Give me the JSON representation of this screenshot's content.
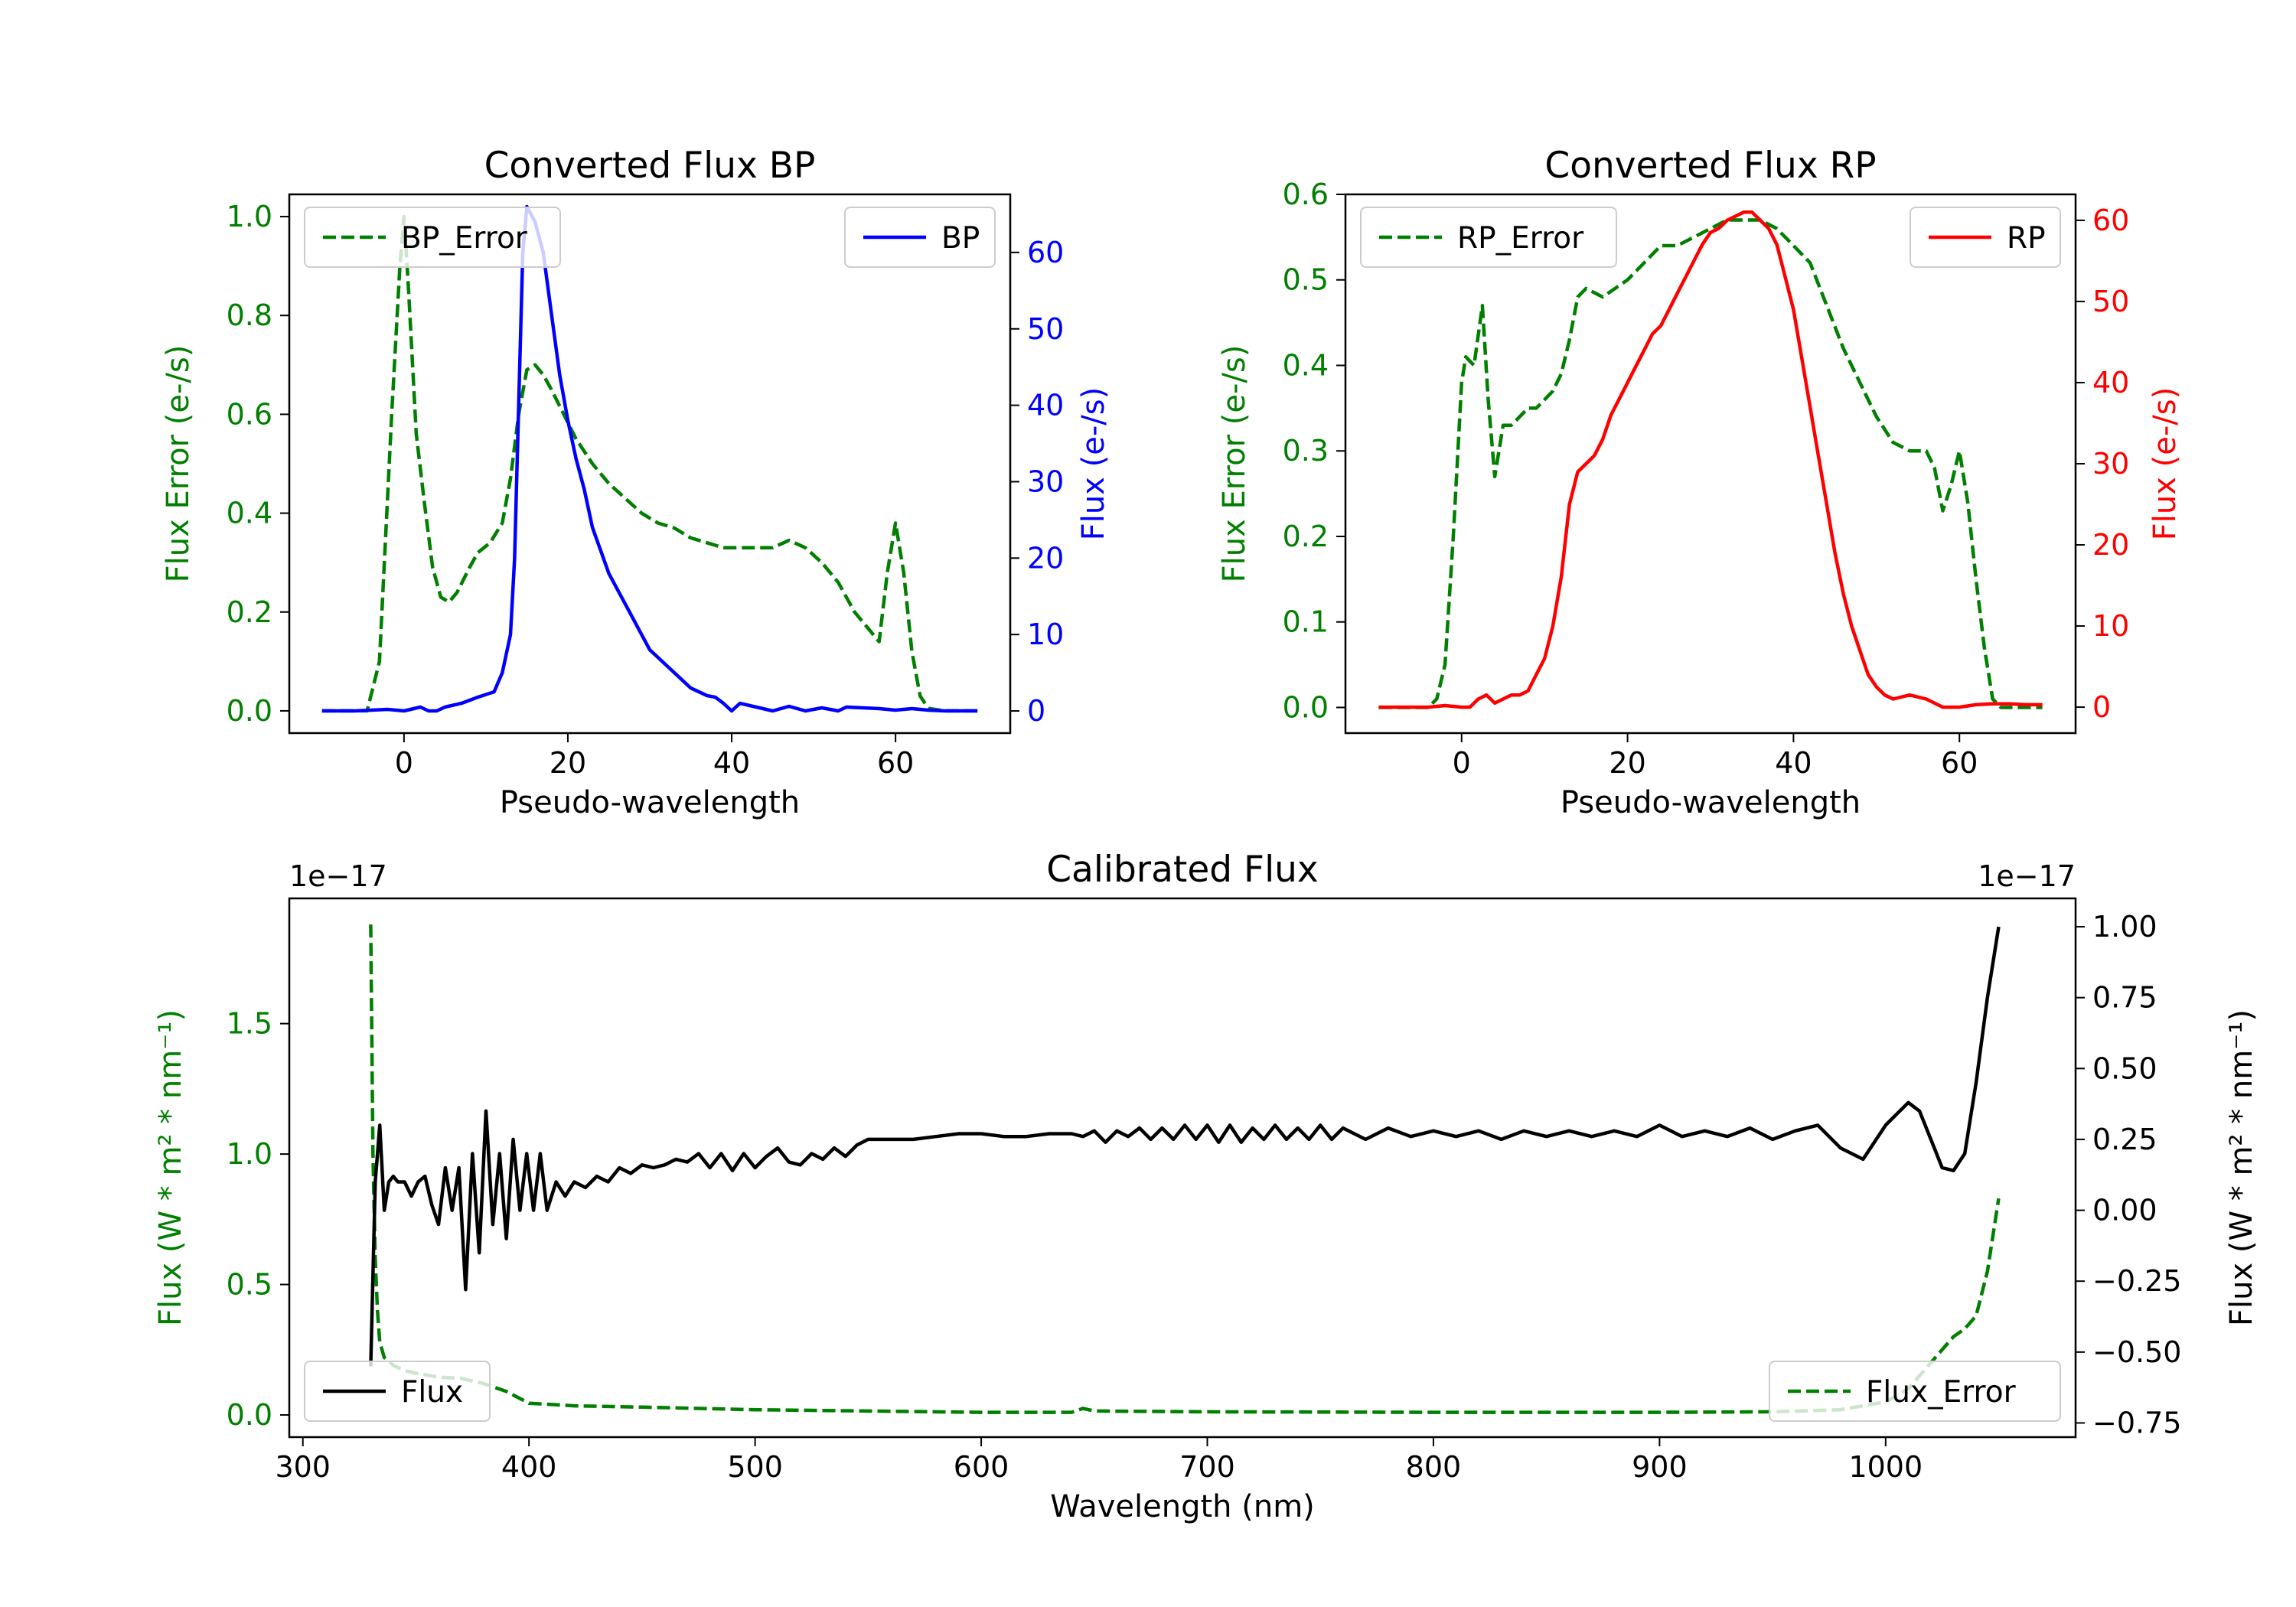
{
  "colors": {
    "green": "#007f00",
    "blue": "#0000ff",
    "red": "#ff0000",
    "black": "#000000"
  },
  "chart_data": [
    {
      "id": "bp",
      "type": "line",
      "title": "Converted Flux BP",
      "xlabel": "Pseudo-wavelength",
      "ylabel_left": "Flux Error (e-/s)",
      "ylabel_right": "Flux (e-/s)",
      "xlim": [
        -14,
        74
      ],
      "ylim_left": [
        -0.045,
        1.045
      ],
      "ylim_right": [
        -2.9,
        67.6
      ],
      "x_ticks": [
        0,
        20,
        40,
        60
      ],
      "x_tick_labels": [
        "0",
        "20",
        "40",
        "60"
      ],
      "y_left_ticks": [
        0,
        0.2,
        0.4,
        0.6,
        0.8,
        1.0
      ],
      "y_left_tick_labels": [
        "0.0",
        "0.2",
        "0.4",
        "0.6",
        "0.8",
        "1.0"
      ],
      "y_right_ticks": [
        0,
        10,
        20,
        30,
        40,
        50,
        60
      ],
      "y_right_tick_labels": [
        "0",
        "10",
        "20",
        "30",
        "40",
        "50",
        "60"
      ],
      "left_offset_label": "",
      "right_offset_label": "",
      "series": [
        {
          "name": "BP_Error",
          "axis": "left",
          "color": "#007f00",
          "dashed": true,
          "legend": "left",
          "x": [
            -10,
            -4.5,
            -3,
            -1.5,
            -0.5,
            0,
            0.5,
            1.5,
            2.5,
            3.5,
            4.5,
            5.5,
            6.5,
            8,
            9,
            10.5,
            12,
            13,
            14,
            15,
            16,
            17,
            18,
            19.5,
            21,
            23,
            25,
            27,
            29,
            31,
            33,
            35,
            37,
            39,
            41,
            43,
            45,
            47,
            49,
            51,
            53,
            55,
            57,
            58,
            59,
            60,
            61,
            62,
            63,
            64,
            66,
            68,
            70
          ],
          "values": [
            0.0,
            0.0,
            0.1,
            0.6,
            0.9,
            1.0,
            0.87,
            0.56,
            0.42,
            0.29,
            0.23,
            0.22,
            0.24,
            0.29,
            0.32,
            0.34,
            0.38,
            0.47,
            0.6,
            0.69,
            0.7,
            0.68,
            0.65,
            0.6,
            0.55,
            0.5,
            0.46,
            0.43,
            0.4,
            0.38,
            0.37,
            0.35,
            0.34,
            0.33,
            0.33,
            0.33,
            0.33,
            0.345,
            0.33,
            0.3,
            0.26,
            0.2,
            0.16,
            0.14,
            0.28,
            0.38,
            0.28,
            0.12,
            0.03,
            0.005,
            0.0,
            0.0,
            0.0
          ]
        },
        {
          "name": "BP",
          "axis": "right",
          "color": "#0000ff",
          "dashed": false,
          "legend": "right",
          "x": [
            -10,
            -6,
            -2,
            0,
            2,
            3,
            4,
            5,
            7,
            9,
            11,
            12,
            13,
            13.5,
            14,
            14.5,
            15,
            15.5,
            16,
            17,
            18,
            19,
            20,
            21,
            22,
            23,
            24,
            25,
            26,
            27,
            28,
            29,
            30,
            31,
            32,
            33,
            34,
            35,
            36,
            37,
            38,
            39,
            40,
            41,
            43,
            45,
            47,
            49,
            51,
            53,
            54,
            56,
            58,
            60,
            62,
            64,
            66,
            68,
            70
          ],
          "values": [
            0.0,
            0.0,
            0.2,
            0.0,
            0.5,
            0.0,
            0.0,
            0.5,
            1.0,
            1.8,
            2.5,
            5.0,
            10.0,
            20.0,
            40.0,
            60.0,
            66.0,
            65.0,
            64.0,
            60.0,
            52.0,
            44.0,
            38.0,
            33.0,
            29.0,
            24.0,
            21.0,
            18.0,
            16.0,
            14.0,
            12.0,
            10.0,
            8.0,
            7.0,
            6.0,
            5.0,
            4.0,
            3.0,
            2.5,
            2.0,
            1.8,
            1.0,
            0.0,
            1.0,
            0.5,
            0.0,
            0.6,
            0.0,
            0.4,
            0.0,
            0.5,
            0.4,
            0.3,
            0.1,
            0.3,
            0.1,
            0.0,
            0.0,
            0.0
          ]
        }
      ]
    },
    {
      "id": "rp",
      "type": "line",
      "title": "Converted Flux RP",
      "xlabel": "Pseudo-wavelength",
      "ylabel_left": "Flux Error (e-/s)",
      "ylabel_right": "Flux (e-/s)",
      "xlim": [
        -14,
        74
      ],
      "ylim_left": [
        -0.03,
        0.6
      ],
      "ylim_right": [
        -3.2,
        63.2
      ],
      "x_ticks": [
        0,
        20,
        40,
        60
      ],
      "x_tick_labels": [
        "0",
        "20",
        "40",
        "60"
      ],
      "y_left_ticks": [
        0,
        0.1,
        0.2,
        0.3,
        0.4,
        0.5,
        0.6
      ],
      "y_left_tick_labels": [
        "0.0",
        "0.1",
        "0.2",
        "0.3",
        "0.4",
        "0.5",
        "0.6"
      ],
      "y_right_ticks": [
        0,
        10,
        20,
        30,
        40,
        50,
        60
      ],
      "y_right_tick_labels": [
        "0",
        "10",
        "20",
        "30",
        "40",
        "50",
        "60"
      ],
      "left_offset_label": "",
      "right_offset_label": "",
      "series": [
        {
          "name": "RP_Error",
          "axis": "left",
          "color": "#007f00",
          "dashed": true,
          "legend": "left",
          "x": [
            -10,
            -4,
            -3,
            -2,
            -1,
            0,
            0.5,
            1.5,
            2.5,
            3.2,
            4,
            5,
            6,
            7,
            8,
            9,
            10,
            11,
            12,
            13,
            14,
            15,
            17,
            20,
            22,
            24,
            26,
            28,
            30,
            32,
            34,
            36,
            38,
            40,
            42,
            44,
            46,
            48,
            50,
            52,
            54,
            55,
            56,
            57,
            58,
            59,
            60,
            61,
            62,
            63,
            64,
            65,
            67,
            70
          ],
          "values": [
            0.0,
            0.0,
            0.01,
            0.05,
            0.2,
            0.38,
            0.41,
            0.4,
            0.47,
            0.36,
            0.27,
            0.33,
            0.33,
            0.34,
            0.35,
            0.35,
            0.36,
            0.37,
            0.39,
            0.43,
            0.48,
            0.49,
            0.48,
            0.5,
            0.52,
            0.54,
            0.54,
            0.55,
            0.56,
            0.57,
            0.57,
            0.57,
            0.56,
            0.54,
            0.52,
            0.47,
            0.42,
            0.38,
            0.34,
            0.31,
            0.3,
            0.3,
            0.3,
            0.28,
            0.23,
            0.26,
            0.3,
            0.24,
            0.15,
            0.07,
            0.01,
            0.0,
            0.0,
            0.0
          ]
        },
        {
          "name": "RP",
          "axis": "right",
          "color": "#ff0000",
          "dashed": false,
          "legend": "right",
          "x": [
            -10,
            -4,
            -2,
            0,
            1,
            2,
            3,
            4,
            5,
            6,
            7,
            8,
            9,
            10,
            11,
            12,
            13,
            14,
            15,
            16,
            17,
            18,
            19,
            20,
            21,
            22,
            23,
            24,
            25,
            26,
            27,
            28,
            29,
            30,
            31,
            32,
            33,
            34,
            35,
            36,
            37,
            38,
            39,
            40,
            41,
            42,
            43,
            44,
            45,
            46,
            47,
            48,
            49,
            50,
            51,
            52,
            54,
            56,
            58,
            60,
            62,
            64,
            66,
            68,
            70
          ],
          "values": [
            0.0,
            0.0,
            0.2,
            0.0,
            0.0,
            1.0,
            1.5,
            0.5,
            1.0,
            1.5,
            1.5,
            2.0,
            4.0,
            6.0,
            10.0,
            16.0,
            25.0,
            29.0,
            30.0,
            31.0,
            33.0,
            36.0,
            38.0,
            40.0,
            42.0,
            44.0,
            46.0,
            47.0,
            49.0,
            51.0,
            53.0,
            55.0,
            57.0,
            58.5,
            59.0,
            60.0,
            60.5,
            61.0,
            61.0,
            60.0,
            59.0,
            57.0,
            53.0,
            49.0,
            43.0,
            37.0,
            31.0,
            25.0,
            19.0,
            14.0,
            10.0,
            7.0,
            4.0,
            2.5,
            1.5,
            1.0,
            1.5,
            1.0,
            0.0,
            0.0,
            0.3,
            0.4,
            0.4,
            0.3,
            0.3
          ]
        }
      ]
    },
    {
      "id": "cal",
      "type": "line",
      "title": "Calibrated Flux",
      "xlabel": "Wavelength (nm)",
      "ylabel_left": "Flux (W * m² * nm⁻¹)",
      "ylabel_right": "Flux (W * m² * nm⁻¹)",
      "xlim": [
        294,
        1084
      ],
      "ylim_left": [
        -0.085,
        1.98
      ],
      "ylim_right": [
        -0.8,
        1.1
      ],
      "x_ticks": [
        300,
        400,
        500,
        600,
        700,
        800,
        900,
        1000
      ],
      "x_tick_labels": [
        "300",
        "400",
        "500",
        "600",
        "700",
        "800",
        "900",
        "1000"
      ],
      "y_left_ticks": [
        0,
        0.5,
        1.0,
        1.5
      ],
      "y_left_tick_labels": [
        "0.0",
        "0.5",
        "1.0",
        "1.5"
      ],
      "y_right_ticks": [
        -0.75,
        -0.5,
        -0.25,
        0,
        0.25,
        0.5,
        0.75,
        1.0
      ],
      "y_right_tick_labels": [
        "−0.75",
        "−0.50",
        "−0.25",
        "0.00",
        "0.25",
        "0.50",
        "0.75",
        "1.00"
      ],
      "left_offset_label": "1e−17",
      "right_offset_label": "1e−17",
      "series": [
        {
          "name": "Flux_Error",
          "axis": "left",
          "color": "#007f00",
          "dashed": true,
          "legend": "right",
          "x": [
            330,
            331,
            332,
            333,
            334,
            336,
            340,
            345,
            350,
            360,
            370,
            380,
            390,
            400,
            420,
            450,
            500,
            550,
            600,
            640,
            645,
            650,
            700,
            800,
            900,
            950,
            980,
            1000,
            1010,
            1020,
            1030,
            1035,
            1040,
            1045,
            1050
          ],
          "values": [
            1.88,
            1.0,
            0.6,
            0.4,
            0.28,
            0.22,
            0.19,
            0.17,
            0.16,
            0.145,
            0.14,
            0.12,
            0.09,
            0.045,
            0.035,
            0.03,
            0.02,
            0.015,
            0.01,
            0.01,
            0.025,
            0.015,
            0.012,
            0.01,
            0.01,
            0.012,
            0.02,
            0.05,
            0.1,
            0.2,
            0.3,
            0.33,
            0.38,
            0.55,
            0.83
          ]
        },
        {
          "name": "Flux",
          "axis": "right",
          "color": "#000000",
          "dashed": false,
          "legend": "left",
          "x": [
            330,
            332,
            334,
            336,
            338,
            340,
            342,
            345,
            348,
            351,
            354,
            357,
            360,
            363,
            366,
            369,
            372,
            375,
            378,
            381,
            384,
            387,
            390,
            393,
            396,
            399,
            402,
            405,
            408,
            412,
            416,
            420,
            425,
            430,
            435,
            440,
            445,
            450,
            455,
            460,
            465,
            470,
            475,
            480,
            485,
            490,
            495,
            500,
            505,
            510,
            515,
            520,
            525,
            530,
            535,
            540,
            545,
            550,
            560,
            570,
            580,
            590,
            600,
            610,
            620,
            630,
            640,
            645,
            650,
            655,
            660,
            665,
            670,
            675,
            680,
            685,
            690,
            695,
            700,
            705,
            710,
            715,
            720,
            725,
            730,
            735,
            740,
            745,
            750,
            755,
            760,
            770,
            780,
            790,
            800,
            810,
            820,
            830,
            840,
            850,
            860,
            870,
            880,
            890,
            900,
            910,
            920,
            930,
            940,
            950,
            960,
            970,
            980,
            990,
            1000,
            1010,
            1015,
            1020,
            1025,
            1030,
            1035,
            1040,
            1045,
            1050
          ],
          "values": [
            -0.55,
            0.1,
            0.3,
            0.0,
            0.1,
            0.12,
            0.1,
            0.1,
            0.05,
            0.1,
            0.12,
            0.02,
            -0.05,
            0.15,
            0.0,
            0.15,
            -0.28,
            0.2,
            -0.15,
            0.35,
            -0.05,
            0.2,
            -0.1,
            0.25,
            0.0,
            0.2,
            0.0,
            0.2,
            0.0,
            0.1,
            0.05,
            0.1,
            0.08,
            0.12,
            0.1,
            0.15,
            0.13,
            0.16,
            0.15,
            0.16,
            0.18,
            0.17,
            0.2,
            0.15,
            0.2,
            0.14,
            0.2,
            0.15,
            0.19,
            0.22,
            0.17,
            0.16,
            0.2,
            0.18,
            0.22,
            0.19,
            0.23,
            0.25,
            0.25,
            0.25,
            0.26,
            0.27,
            0.27,
            0.26,
            0.26,
            0.27,
            0.27,
            0.26,
            0.28,
            0.24,
            0.28,
            0.26,
            0.29,
            0.25,
            0.29,
            0.25,
            0.3,
            0.25,
            0.3,
            0.24,
            0.3,
            0.24,
            0.29,
            0.25,
            0.3,
            0.25,
            0.29,
            0.25,
            0.3,
            0.25,
            0.29,
            0.25,
            0.29,
            0.26,
            0.28,
            0.26,
            0.28,
            0.25,
            0.28,
            0.26,
            0.28,
            0.26,
            0.28,
            0.26,
            0.3,
            0.26,
            0.28,
            0.26,
            0.29,
            0.25,
            0.28,
            0.3,
            0.22,
            0.18,
            0.3,
            0.38,
            0.35,
            0.25,
            0.15,
            0.14,
            0.2,
            0.45,
            0.75,
            1.0
          ]
        }
      ]
    }
  ]
}
